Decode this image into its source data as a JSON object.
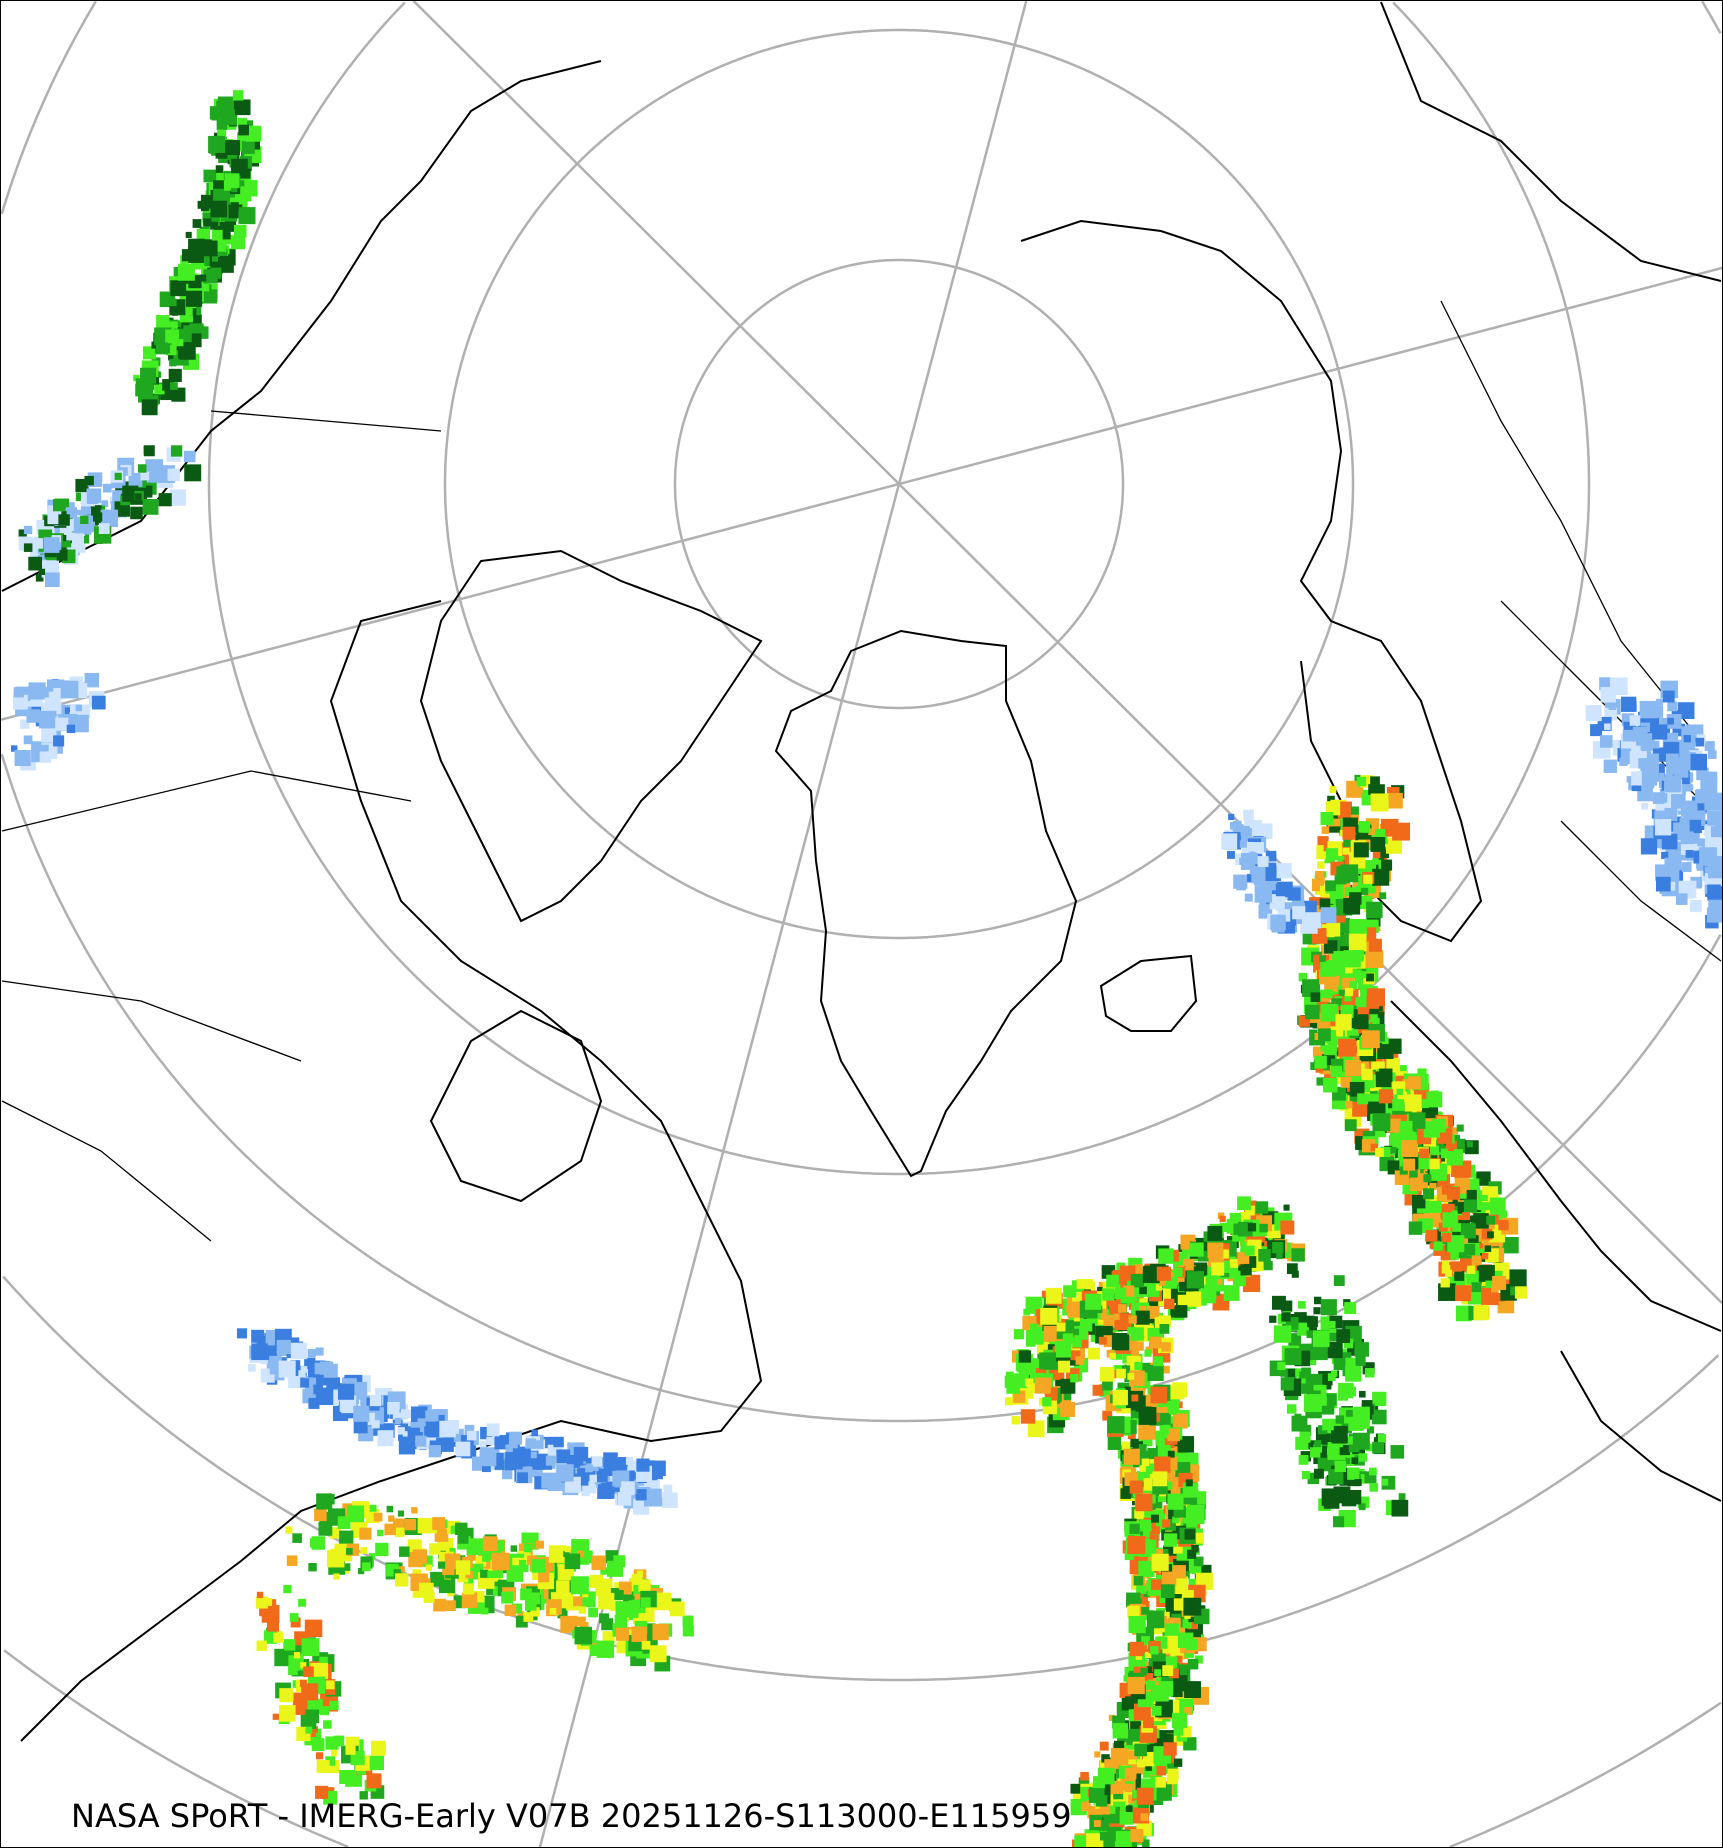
{
  "caption": "NASA SPoRT - IMERG-Early V07B 20251126-S113000-E115959",
  "map": {
    "projection": "north-polar-stereographic",
    "graticule_color": "#b0b0b0",
    "coastline_color": "#000000",
    "precip_colors": [
      "#cfe4ff",
      "#8ab8f0",
      "#3a7fe0",
      "#0a5a14",
      "#1fa81f",
      "#44ee22",
      "#eaf51a",
      "#f5a623",
      "#f06a1a",
      "#e0207a"
    ]
  }
}
